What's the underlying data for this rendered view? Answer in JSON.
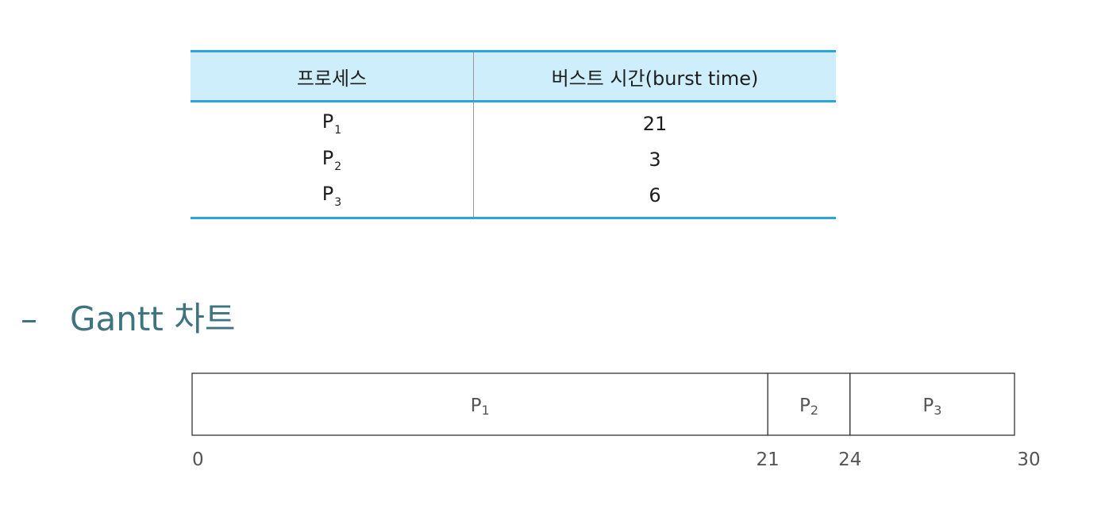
{
  "table": {
    "headers": {
      "process": "프로세스",
      "burst_time": "버스트 시간(burst time)"
    },
    "rows": [
      {
        "process": "P",
        "sub": "1",
        "burst": "21"
      },
      {
        "process": "P",
        "sub": "2",
        "burst": "3"
      },
      {
        "process": "P",
        "sub": "3",
        "burst": "6"
      }
    ]
  },
  "heading": {
    "dash": "–",
    "text": "Gantt 차트"
  },
  "chart_data": {
    "type": "gantt",
    "title": "",
    "xlabel": "",
    "ylabel": "",
    "xlim": [
      0,
      30
    ],
    "grid": false,
    "segments": [
      {
        "label": "P",
        "sub": "1",
        "start": 0,
        "end": 21
      },
      {
        "label": "P",
        "sub": "2",
        "start": 21,
        "end": 24
      },
      {
        "label": "P",
        "sub": "3",
        "start": 24,
        "end": 30
      }
    ],
    "ticks": [
      0,
      21,
      24,
      30
    ],
    "colors": {
      "fill": "#ffffff",
      "stroke": "#333333",
      "text": "#555555"
    }
  },
  "colors": {
    "table_rule": "#2aa6df",
    "table_header_bg": "#cfeefb",
    "heading": "#3d7480"
  }
}
